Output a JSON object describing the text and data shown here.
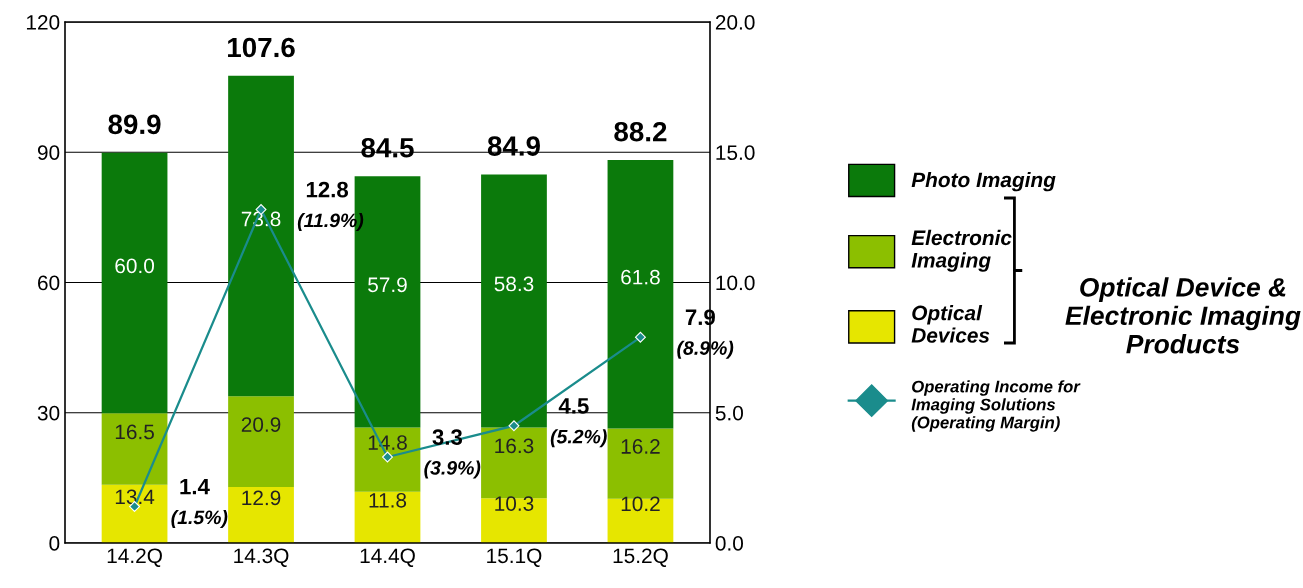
{
  "chart_data": {
    "type": "bar",
    "stacked": true,
    "categories": [
      "14.2Q",
      "14.3Q",
      "14.4Q",
      "15.1Q",
      "15.2Q"
    ],
    "series": [
      {
        "name": "Optical\nDevices",
        "color": "#e6e600",
        "values": [
          13.4,
          12.9,
          11.8,
          10.3,
          10.2
        ],
        "value_labels": [
          "13.4",
          "12.9",
          "11.8",
          "10.3",
          "10.2"
        ]
      },
      {
        "name": "Electronic\nImaging",
        "color": "#8cbf00",
        "values": [
          16.5,
          20.9,
          14.8,
          16.3,
          16.2
        ],
        "value_labels": [
          "16.5",
          "20.9",
          "14.8",
          "16.3",
          "16.2"
        ]
      },
      {
        "name": "Photo Imaging",
        "color": "#0b7a0b",
        "values": [
          60.0,
          73.8,
          57.9,
          58.3,
          61.8
        ],
        "value_labels": [
          "60.0",
          "73.8",
          "57.9",
          "58.3",
          "61.8"
        ]
      },
      {
        "name": "Operating Income for\nImaging Solutions\n(Operating Margin)",
        "type": "line",
        "axis": "y2",
        "color": "#1a8c8c",
        "marker": "diamond",
        "values": [
          1.4,
          12.8,
          3.3,
          4.5,
          7.9
        ],
        "value_labels": [
          "1.4",
          "12.8",
          "3.3",
          "4.5",
          "7.9"
        ]
      }
    ],
    "totals": [
      "89.9",
      "107.6",
      "84.5",
      "84.9",
      "88.2"
    ],
    "ylim": [
      0,
      120
    ],
    "yticks": [
      0,
      30,
      60,
      90,
      120
    ],
    "y2lim": [
      0,
      20
    ],
    "y2ticks": [
      {
        "value": 0,
        "label": "0.0"
      },
      {
        "value": 5,
        "label": "5.0"
      },
      {
        "value": 10,
        "label": "10.0"
      },
      {
        "value": 15,
        "label": "15.0"
      },
      {
        "value": 20,
        "label": "20.0"
      }
    ],
    "grid": "y",
    "legend": "right",
    "annotations": [
      "(1.5%)",
      "(11.9%)",
      "(3.9%)",
      "(5.2%)",
      "(8.9%)",
      "Optical Device &\nElectronic Imaging\nProducts"
    ]
  }
}
